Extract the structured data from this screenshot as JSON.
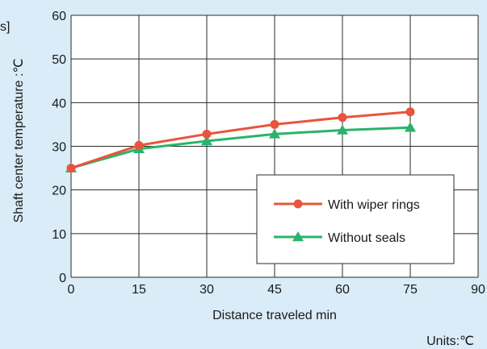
{
  "edge_fragment": "s]",
  "units_note": "Units:℃",
  "colors": {
    "background": "#d9ecf7",
    "plot_area": "#ffffff",
    "with_wiper_rings": "#e8553c",
    "without_seals": "#2ab36a"
  },
  "chart_data": {
    "type": "line",
    "title": "",
    "xlabel": "Distance traveled  min",
    "ylabel": "Shaft center temperature :℃",
    "x": [
      0,
      15,
      30,
      45,
      60,
      75
    ],
    "xlim": [
      0,
      90
    ],
    "ylim": [
      0,
      60
    ],
    "xticks": [
      "0",
      "15",
      "30",
      "45",
      "60",
      "75",
      "90"
    ],
    "yticks": [
      "0",
      "10",
      "20",
      "30",
      "40",
      "50",
      "60"
    ],
    "grid": true,
    "legend_position": "lower-right",
    "series": [
      {
        "name": "With wiper rings",
        "marker": "circle",
        "color": "#e8553c",
        "values": [
          25,
          30.2,
          32.8,
          35,
          36.6,
          37.9
        ]
      },
      {
        "name": "Without seals",
        "marker": "triangle",
        "color": "#2ab36a",
        "values": [
          25,
          29.4,
          31.2,
          32.8,
          33.7,
          34.3
        ]
      }
    ]
  }
}
